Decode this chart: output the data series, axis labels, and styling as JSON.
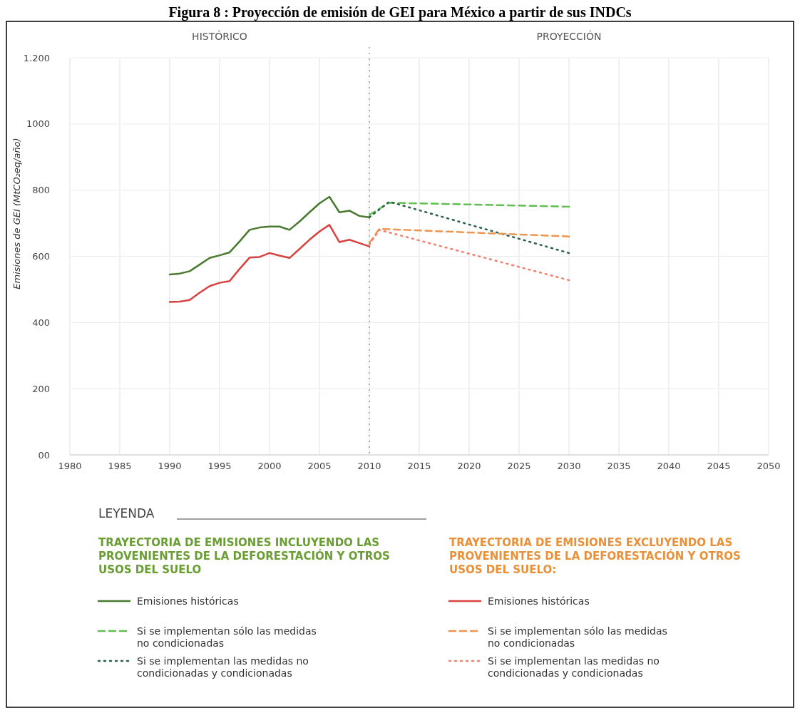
{
  "chart_data": {
    "type": "line",
    "title": "Figura 8 : Proyección de emisión de GEI para México a partir de sus INDCs",
    "ylabel": "Emisiones de GEI (MtCO₂eq/año)",
    "legend_title": "LEYENDA",
    "annotations": [
      "HISTÓRICO",
      "PROYECCIÓN",
      "TRAYECTORIA DE EMISIONES INCLUYENDO LAS PROVENIENTES DE LA DEFORESTACIÓN Y OTROS USOS DEL SUELO",
      "TRAYECTORIA DE EMISIONES EXCLUYENDO LAS PROVENIENTES DE LA DEFORESTACIÓN Y OTROS USOS DEL SUELO:"
    ],
    "xlim": [
      1980,
      2050
    ],
    "xticks": [
      1980,
      1985,
      1990,
      1995,
      2000,
      2005,
      2010,
      2015,
      2020,
      2025,
      2030,
      2035,
      2040,
      2045,
      2050
    ],
    "ylim": [
      0,
      1200
    ],
    "yticks": [
      {
        "value": 0,
        "label": "00"
      },
      200,
      400,
      600,
      800,
      1000,
      {
        "value": 1200,
        "label": "1.200"
      }
    ],
    "grid": true,
    "legend": "bottom",
    "marker": "none",
    "ref_lines": [
      {
        "axis": "x",
        "value": 2010,
        "color": "#888888",
        "line_style": "dotted"
      }
    ],
    "series": [
      {
        "name": "Emisiones históricas",
        "color": "#4a7a30",
        "line_style": "solid",
        "x": [
          1990,
          1991,
          1992,
          1993,
          1994,
          1995,
          1996,
          1997,
          1998,
          1999,
          2000,
          2001,
          2002,
          2003,
          2004,
          2005,
          2006,
          2007,
          2008,
          2009,
          2010
        ],
        "values": [
          545,
          548,
          555,
          575,
          595,
          603,
          612,
          645,
          680,
          687,
          690,
          690,
          680,
          705,
          733,
          760,
          780,
          733,
          738,
          722,
          718
        ]
      },
      {
        "name": "Si se implementan sólo las medidas no condicionadas",
        "color": "#5fbf4f",
        "line_style": "dashed",
        "x": [
          2010,
          2012,
          2030
        ],
        "values": [
          725,
          762,
          750
        ]
      },
      {
        "name": "Si se implementan las medidas no condicionadas y condicionadas",
        "color": "#2b5f50",
        "line_style": "dotted",
        "x": [
          2010,
          2012,
          2030
        ],
        "values": [
          718,
          765,
          610
        ]
      },
      {
        "name": "Emisiones históricas",
        "color": "#d9413f",
        "line_style": "solid",
        "x": [
          1990,
          1991,
          1992,
          1993,
          1994,
          1995,
          1996,
          1997,
          1998,
          1999,
          2000,
          2001,
          2002,
          2003,
          2004,
          2005,
          2006,
          2007,
          2008,
          2009,
          2010
        ],
        "values": [
          462,
          463,
          468,
          490,
          510,
          520,
          525,
          562,
          596,
          598,
          610,
          602,
          595,
          622,
          650,
          675,
          695,
          643,
          650,
          640,
          630
        ]
      },
      {
        "name": "Si se implementan sólo las medidas no condicionadas",
        "color": "#f0944d",
        "line_style": "dashed",
        "x": [
          2010,
          2011,
          2030
        ],
        "values": [
          640,
          683,
          660
        ]
      },
      {
        "name": "Si se implementan las medidas no condicionadas y condicionadas",
        "color": "#f08070",
        "line_style": "dotted",
        "x": [
          2010,
          2011,
          2030
        ],
        "values": [
          635,
          680,
          528
        ]
      }
    ]
  }
}
